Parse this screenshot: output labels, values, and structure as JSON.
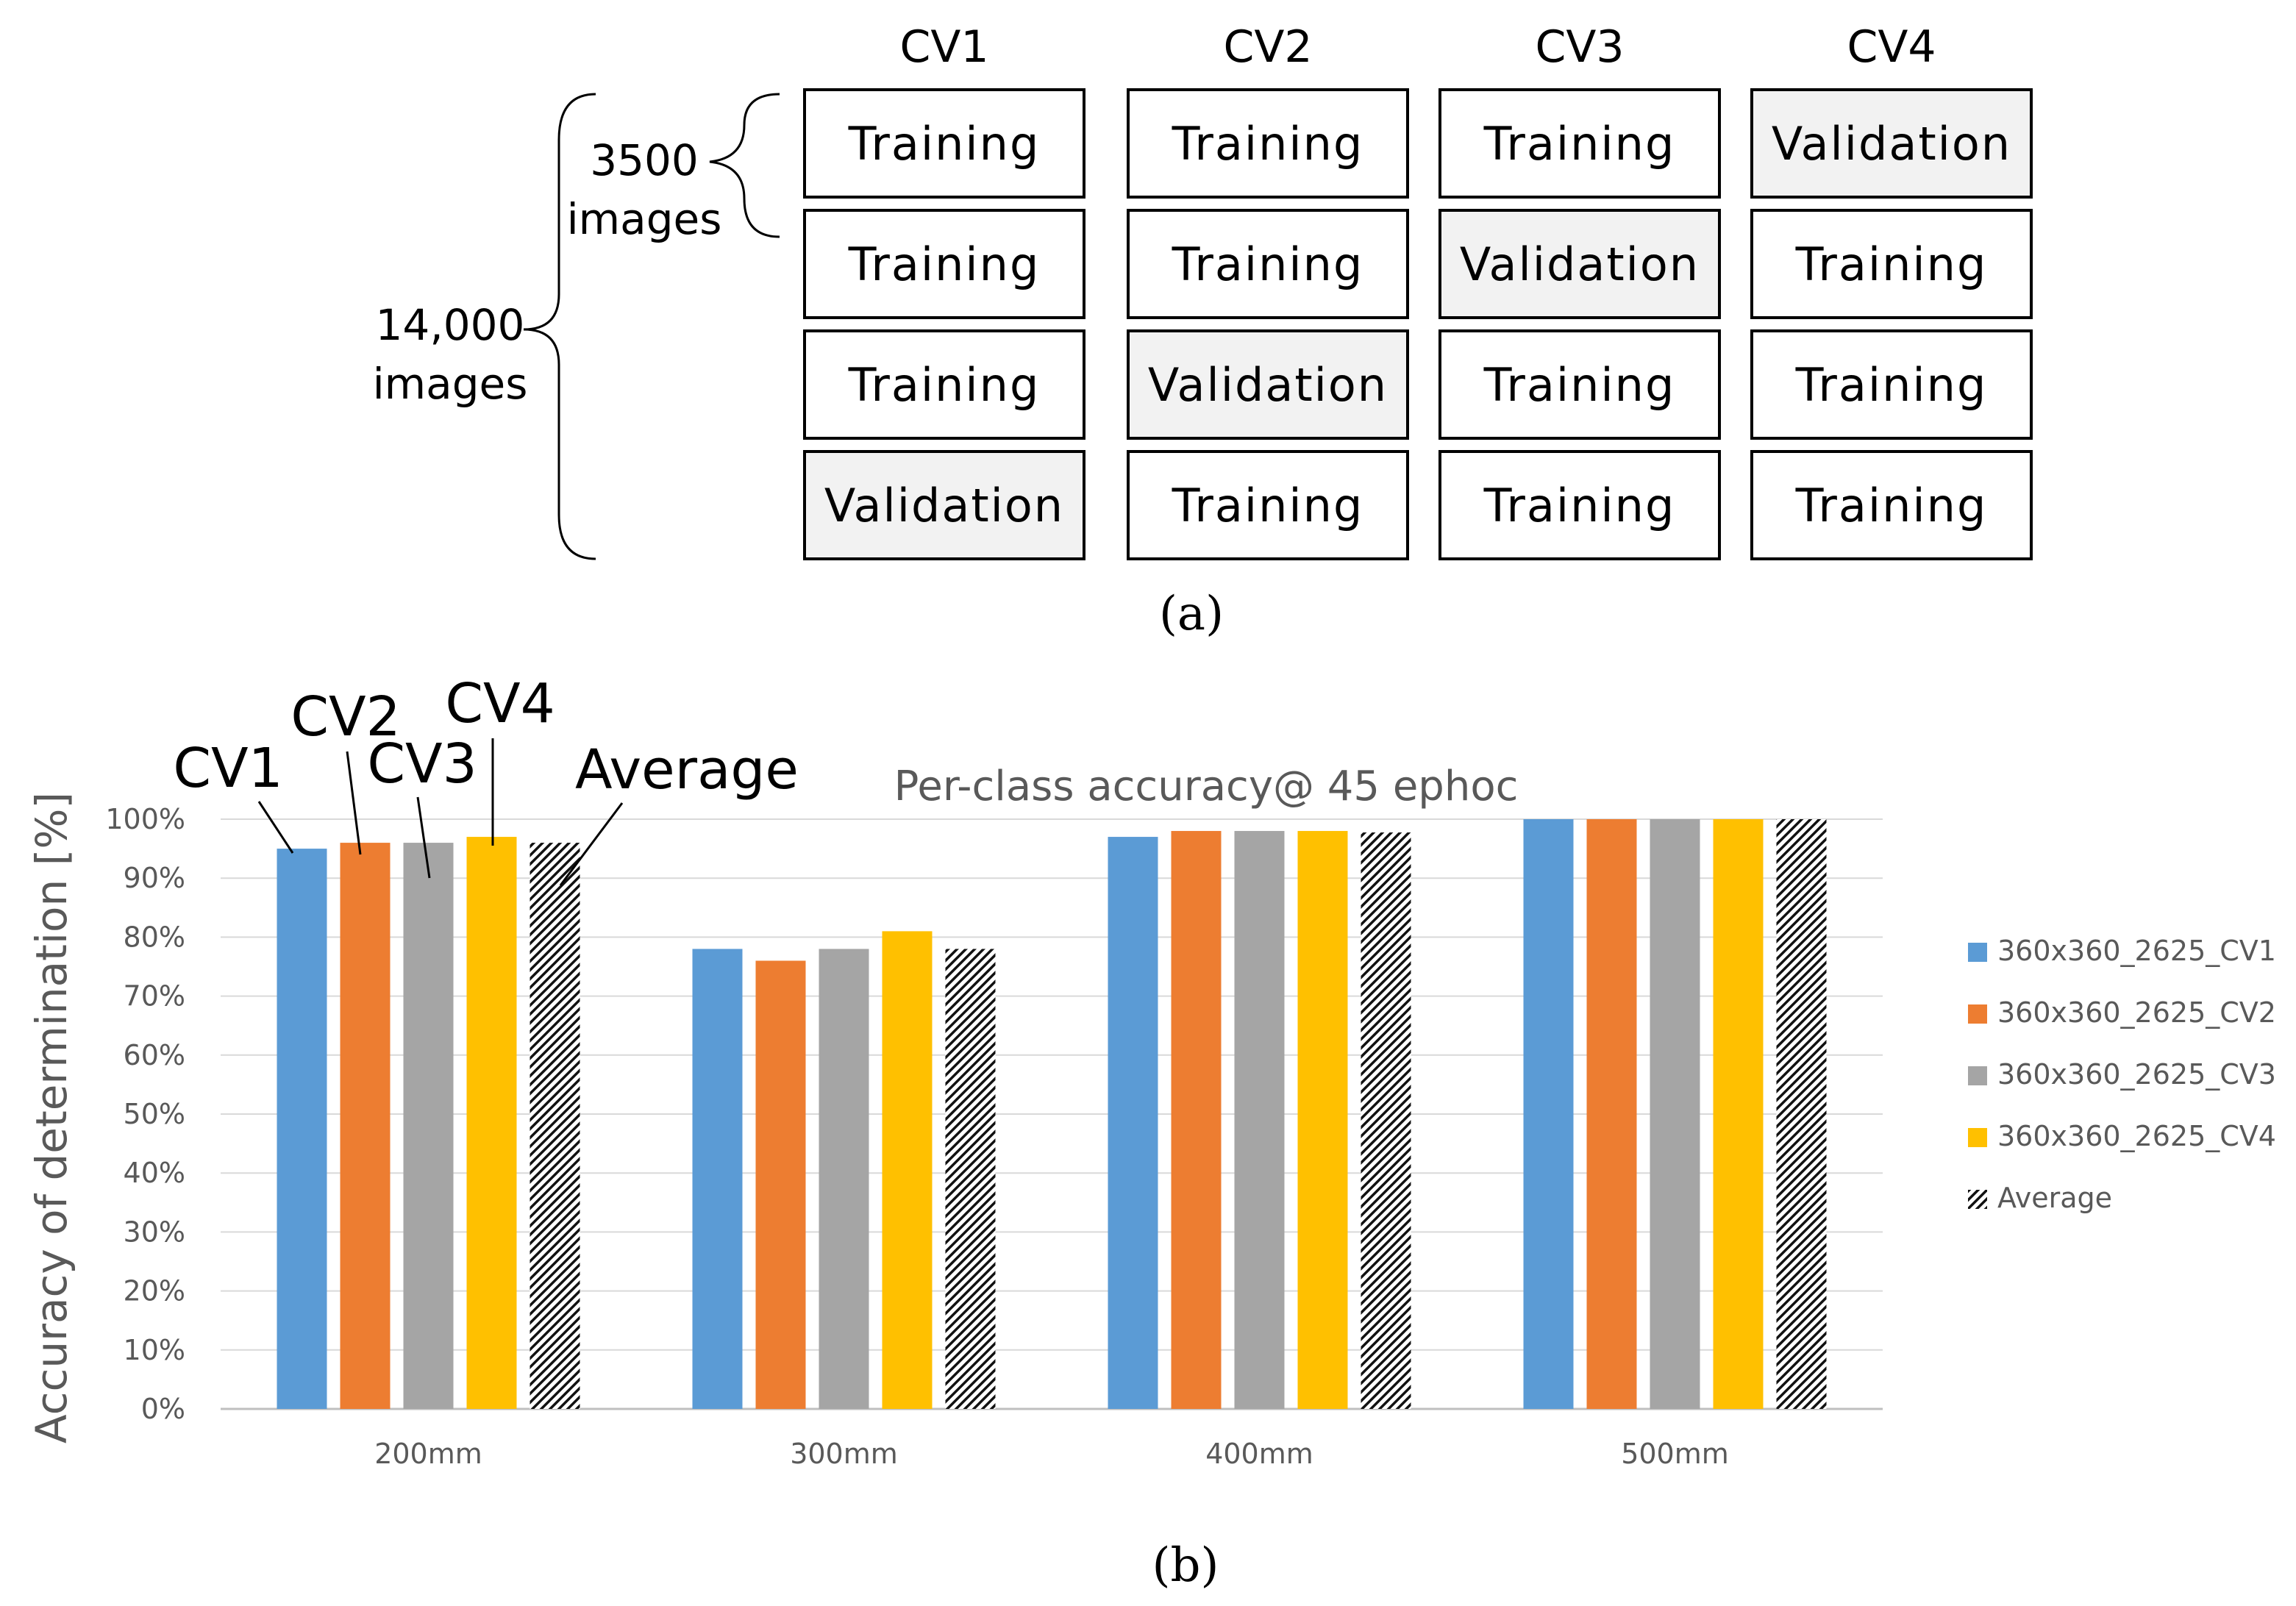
{
  "panel_a": {
    "columns": [
      "CV1",
      "CV2",
      "CV3",
      "CV4"
    ],
    "grid": [
      [
        "Training",
        "Training",
        "Training",
        "Validation"
      ],
      [
        "Training",
        "Training",
        "Validation",
        "Training"
      ],
      [
        "Training",
        "Validation",
        "Training",
        "Training"
      ],
      [
        "Validation",
        "Training",
        "Training",
        "Training"
      ]
    ],
    "fold_label": "3500",
    "fold_label_unit": "images",
    "total_label": "14,000",
    "total_label_unit": "images",
    "caption": "(a)",
    "colors": {
      "training_fill": "#ffffff",
      "validation_fill": "#f2f2f2"
    }
  },
  "panel_b": {
    "caption": "(b)",
    "annotations": [
      "CV1",
      "CV2",
      "CV3",
      "CV4",
      "Average"
    ]
  },
  "chart_data": {
    "type": "bar",
    "title": "Per-class accuracy@ 45 ephoc",
    "xlabel": "",
    "ylabel": "Accuracy of determination [%]",
    "categories": [
      "200mm",
      "300mm",
      "400mm",
      "500mm"
    ],
    "ylim": [
      0,
      100
    ],
    "yticks": [
      "0%",
      "10%",
      "20%",
      "30%",
      "40%",
      "50%",
      "60%",
      "70%",
      "80%",
      "90%",
      "100%"
    ],
    "grid": true,
    "legend_position": "right",
    "series": [
      {
        "name": "360x360_2625_CV1",
        "values": [
          95,
          78,
          97,
          100
        ],
        "color": "#5b9bd5"
      },
      {
        "name": "360x360_2625_CV2",
        "values": [
          96,
          76,
          98,
          100
        ],
        "color": "#ed7d31"
      },
      {
        "name": "360x360_2625_CV3",
        "values": [
          96,
          78,
          98,
          100
        ],
        "color": "#a5a5a5"
      },
      {
        "name": "360x360_2625_CV4",
        "values": [
          97,
          81,
          98,
          100
        ],
        "color": "#ffc000"
      },
      {
        "name": "Average",
        "values": [
          96,
          78,
          97.75,
          100
        ],
        "color": "hatch"
      }
    ]
  }
}
